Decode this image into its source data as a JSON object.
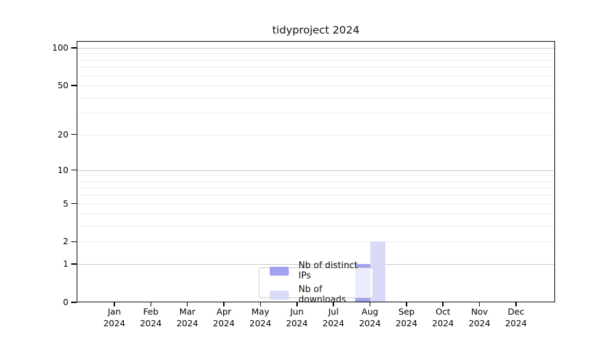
{
  "title": "tidyproject 2024",
  "chart_data": {
    "type": "bar",
    "title": "tidyproject 2024",
    "x_categories": [
      "Jan",
      "Feb",
      "Mar",
      "Apr",
      "May",
      "Jun",
      "Jul",
      "Aug",
      "Sep",
      "Oct",
      "Nov",
      "Dec"
    ],
    "x_year": "2024",
    "series": [
      {
        "name": "Nb of distinct IPs",
        "color": "#a2a3f0",
        "values": [
          0,
          0,
          0,
          0,
          0,
          0,
          0,
          1,
          0,
          0,
          0,
          0
        ]
      },
      {
        "name": "Nb of downloads",
        "color": "#d9daf7",
        "values": [
          0,
          0,
          0,
          0,
          0,
          0,
          0,
          2,
          0,
          0,
          0,
          0
        ]
      }
    ],
    "y_scale": "log1p",
    "ylim": [
      0,
      113
    ],
    "y_tick_values": [
      0,
      1,
      2,
      5,
      10,
      20,
      50,
      100
    ],
    "y_gridlines_major": [
      1,
      10,
      100
    ],
    "y_gridlines_minor": [
      2,
      3,
      4,
      5,
      6,
      7,
      8,
      9,
      20,
      30,
      40,
      50,
      60,
      70,
      80,
      90
    ],
    "grid": "horizontal",
    "legend_position": "inside lower center"
  },
  "colors": {
    "background": "#ffffff",
    "spine": "#000000",
    "gridline_minor": "#ececec",
    "gridline_major": "#c6c6c6",
    "legend_border": "#cccccc"
  }
}
